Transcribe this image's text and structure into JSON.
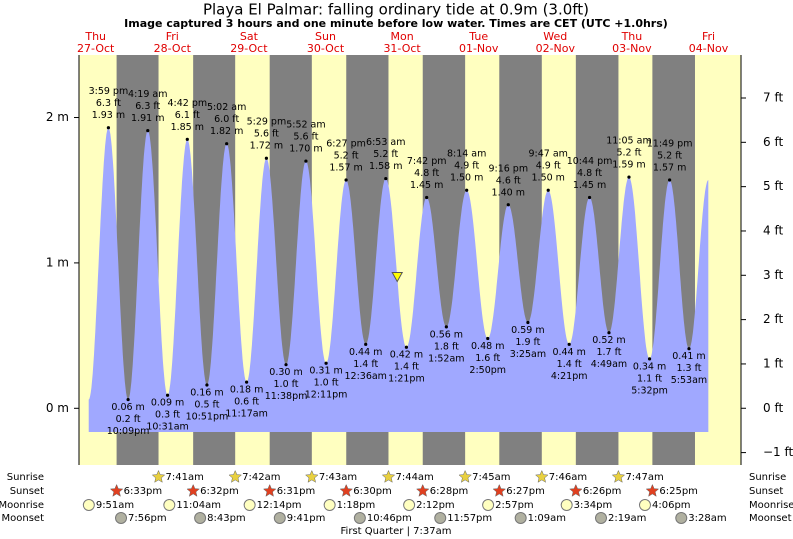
{
  "chart_data": {
    "type": "tide",
    "title": "Playa El Palmar: falling  ordinary tide at 0.9m (3.0ft)",
    "subtitle": "Image captured 3 hours and one minute before low water. Times are CET (UTC +1.0hrs)",
    "current_level": 0.9,
    "ylim": [
      -0.39,
      2.43
    ],
    "yticks": [
      {
        "value": 0,
        "label": "0 m"
      },
      {
        "value": 1,
        "label": "1 m"
      },
      {
        "value": 2,
        "label": "2 m"
      }
    ],
    "y2lim": [
      -1.28,
      7.97
    ],
    "y2ticks": [
      {
        "value": -1,
        "label": "−1 ft"
      },
      {
        "value": 0,
        "label": "0 ft"
      },
      {
        "value": 1,
        "label": "1 ft"
      },
      {
        "value": 2,
        "label": "2 ft"
      },
      {
        "value": 3,
        "label": "3 ft"
      },
      {
        "value": 4,
        "label": "4 ft"
      },
      {
        "value": 5,
        "label": "5 ft"
      },
      {
        "value": 6,
        "label": "6 ft"
      },
      {
        "value": 7,
        "label": "7 ft"
      }
    ],
    "rows": [
      "Sunrise",
      "Sunset",
      "Moonrise",
      "Moonset"
    ],
    "moon_phase": "First Quarter | 7:37am",
    "colors": {
      "water": "#a0a8ff",
      "night": "#808080",
      "day": "#ffffc0"
    },
    "days": [
      {
        "weekday": "Thu",
        "date": "27-Oct",
        "sunrise": null,
        "sunset": "6:33pm",
        "moonrise": "9:51am",
        "moonset": "7:56pm",
        "tides": [
          {
            "time": "3:59 pm",
            "feet": "6.3 ft",
            "value": 1.93,
            "label": "1.93 m"
          },
          {
            "time": "10:09pm",
            "feet": "0.2 ft",
            "value": 0.06,
            "label": "0.06 m"
          }
        ]
      },
      {
        "weekday": "Fri",
        "date": "28-Oct",
        "sunrise": "7:41am",
        "sunset": "6:32pm",
        "moonrise": "11:04am",
        "moonset": "8:43pm",
        "tides": [
          {
            "time": "4:19 am",
            "feet": "6.3 ft",
            "value": 1.91,
            "label": "1.91 m"
          },
          {
            "time": "10:31am",
            "feet": "0.3 ft",
            "value": 0.09,
            "label": "0.09 m"
          },
          {
            "time": "4:42 pm",
            "feet": "6.1 ft",
            "value": 1.85,
            "label": "1.85 m"
          },
          {
            "time": "10:51pm",
            "feet": "0.5 ft",
            "value": 0.16,
            "label": "0.16 m"
          }
        ]
      },
      {
        "weekday": "Sat",
        "date": "29-Oct",
        "sunrise": "7:42am",
        "sunset": "6:31pm",
        "moonrise": "12:14pm",
        "moonset": "9:41pm",
        "tides": [
          {
            "time": "5:02 am",
            "feet": "6.0 ft",
            "value": 1.82,
            "label": "1.82 m"
          },
          {
            "time": "11:17am",
            "feet": "0.6 ft",
            "value": 0.18,
            "label": "0.18 m"
          },
          {
            "time": "5:29 pm",
            "feet": "5.6 ft",
            "value": 1.72,
            "label": "1.72 m"
          },
          {
            "time": "11:38pm",
            "feet": "1.0 ft",
            "value": 0.3,
            "label": "0.30 m"
          }
        ]
      },
      {
        "weekday": "Sun",
        "date": "30-Oct",
        "sunrise": "7:43am",
        "sunset": "6:30pm",
        "moonrise": "1:18pm",
        "moonset": "10:46pm",
        "tides": [
          {
            "time": "5:52 am",
            "feet": "5.6 ft",
            "value": 1.7,
            "label": "1.70 m"
          },
          {
            "time": "12:11pm",
            "feet": "1.0 ft",
            "value": 0.31,
            "label": "0.31 m"
          },
          {
            "time": "6:27 pm",
            "feet": "5.2 ft",
            "value": 1.57,
            "label": "1.57 m"
          }
        ]
      },
      {
        "weekday": "Mon",
        "date": "31-Oct",
        "sunrise": "7:44am",
        "sunset": "6:28pm",
        "moonrise": "2:12pm",
        "moonset": "11:57pm",
        "tides": [
          {
            "time": "12:36am",
            "feet": "1.4 ft",
            "value": 0.44,
            "label": "0.44 m"
          },
          {
            "time": "6:53 am",
            "feet": "5.2 ft",
            "value": 1.58,
            "label": "1.58 m"
          },
          {
            "time": "1:21pm",
            "feet": "1.4 ft",
            "value": 0.42,
            "label": "0.42 m"
          },
          {
            "time": "7:42 pm",
            "feet": "4.8 ft",
            "value": 1.45,
            "label": "1.45 m"
          }
        ]
      },
      {
        "weekday": "Tue",
        "date": "01-Nov",
        "sunrise": "7:45am",
        "sunset": "6:27pm",
        "moonrise": "2:57pm",
        "moonset": null,
        "tides": [
          {
            "time": "1:52am",
            "feet": "1.8 ft",
            "value": 0.56,
            "label": "0.56 m"
          },
          {
            "time": "8:14 am",
            "feet": "4.9 ft",
            "value": 1.5,
            "label": "1.50 m"
          },
          {
            "time": "2:50pm",
            "feet": "1.6 ft",
            "value": 0.48,
            "label": "0.48 m"
          },
          {
            "time": "9:16 pm",
            "feet": "4.6 ft",
            "value": 1.4,
            "label": "1.40 m"
          }
        ]
      },
      {
        "weekday": "Wed",
        "date": "02-Nov",
        "sunrise": "7:46am",
        "sunset": "6:26pm",
        "moonrise": "3:34pm",
        "moonset": "1:09am",
        "tides": [
          {
            "time": "3:25am",
            "feet": "1.9 ft",
            "value": 0.59,
            "label": "0.59 m"
          },
          {
            "time": "9:47 am",
            "feet": "4.9 ft",
            "value": 1.5,
            "label": "1.50 m"
          },
          {
            "time": "4:21pm",
            "feet": "1.4 ft",
            "value": 0.44,
            "label": "0.44 m"
          },
          {
            "time": "10:44 pm",
            "feet": "4.8 ft",
            "value": 1.45,
            "label": "1.45 m"
          }
        ]
      },
      {
        "weekday": "Thu",
        "date": "03-Nov",
        "sunrise": "7:47am",
        "sunset": "6:25pm",
        "moonrise": "4:06pm",
        "moonset": "2:19am",
        "tides": [
          {
            "time": "4:49am",
            "feet": "1.7 ft",
            "value": 0.52,
            "label": "0.52 m"
          },
          {
            "time": "11:05 am",
            "feet": "5.2 ft",
            "value": 1.59,
            "label": "1.59 m"
          },
          {
            "time": "5:32pm",
            "feet": "1.1 ft",
            "value": 0.34,
            "label": "0.34 m"
          },
          {
            "time": "11:49 pm",
            "feet": "5.2 ft",
            "value": 1.57,
            "label": "1.57 m"
          }
        ]
      },
      {
        "weekday": "Fri",
        "date": "04-Nov",
        "sunrise": null,
        "sunset": null,
        "moonrise": null,
        "moonset": "3:28am",
        "tides": [
          {
            "time": "5:53am",
            "feet": "1.3 ft",
            "value": 0.41,
            "label": "0.41 m"
          }
        ]
      }
    ]
  }
}
